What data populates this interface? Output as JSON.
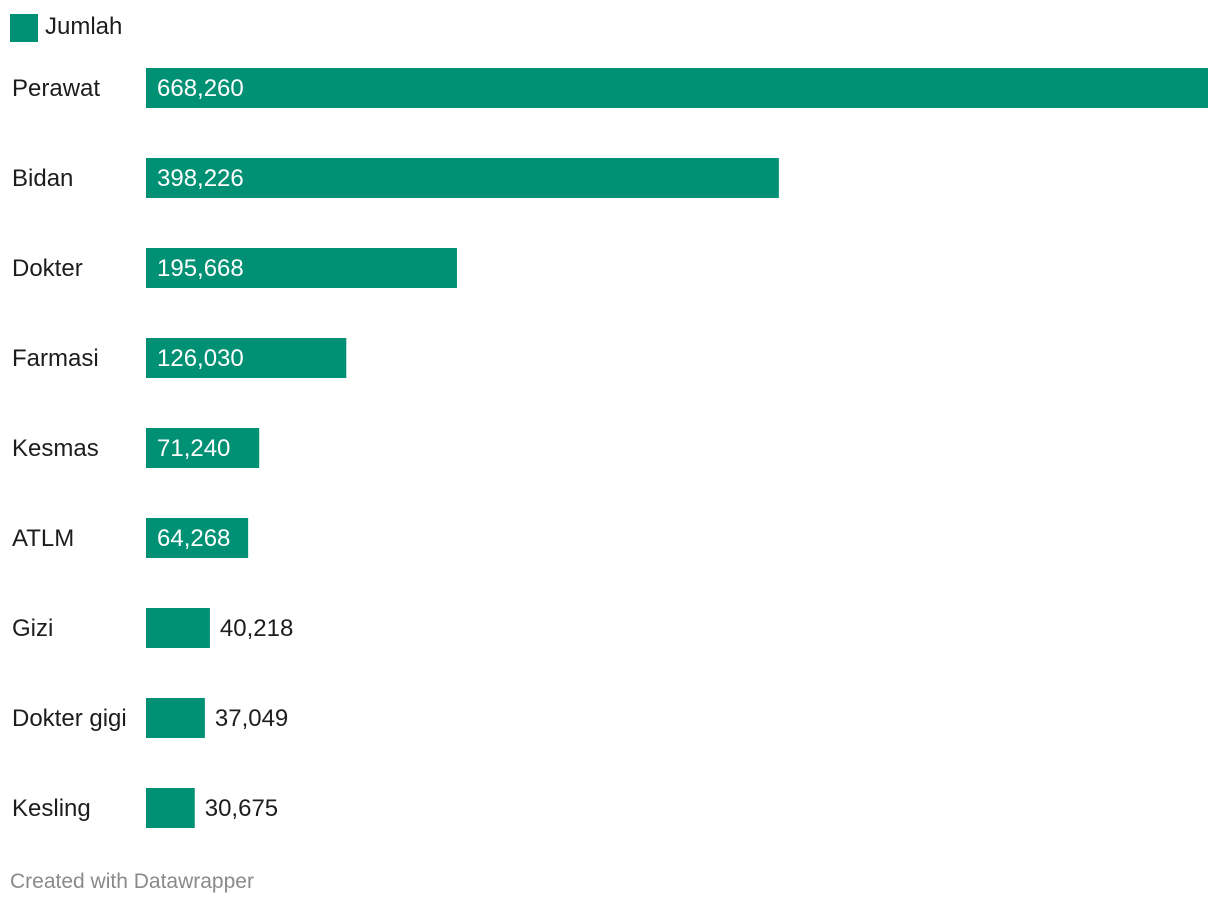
{
  "chart_data": {
    "type": "bar",
    "orientation": "horizontal",
    "legend": [
      {
        "label": "Jumlah",
        "color": "#009175"
      }
    ],
    "legend_position": "top-left",
    "categories": [
      "Perawat",
      "Bidan",
      "Dokter",
      "Farmasi",
      "Kesmas",
      "ATLM",
      "Gizi",
      "Dokter gigi",
      "Kesling"
    ],
    "series": [
      {
        "name": "Jumlah",
        "color": "#009175",
        "values": [
          668260,
          398226,
          195668,
          126030,
          71240,
          64268,
          40218,
          37049,
          30675
        ],
        "labels": [
          "668,260",
          "398,226",
          "195,668",
          "126,030",
          "71,240",
          "64,268",
          "40,218",
          "37,049",
          "30,675"
        ]
      }
    ],
    "xlim": [
      0,
      668260
    ],
    "grid": false,
    "footer": "Created with Datawrapper"
  }
}
